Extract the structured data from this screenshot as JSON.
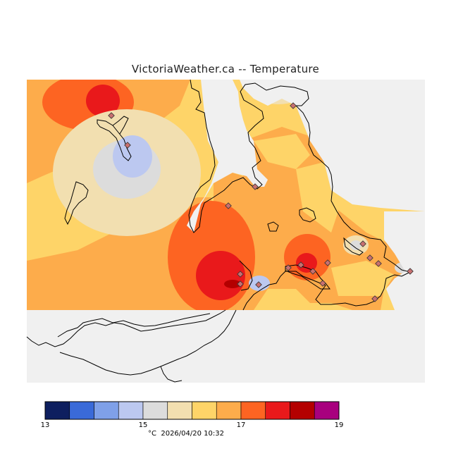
{
  "title": "VictoriaWeather.ca -- Temperature",
  "legend": {
    "unit": "°C",
    "timestamp": "2026/04/20 10:32",
    "ticks": [
      "13",
      "15",
      "17",
      "19"
    ],
    "min": 13,
    "max": 19,
    "colors": [
      "#0e1f5f",
      "#3a6ad8",
      "#7fa0e8",
      "#bcc8f0",
      "#dcdcdc",
      "#f2dfb0",
      "#fed468",
      "#fdac4b",
      "#fd6422",
      "#e9191b",
      "#b40000",
      "#a8007e"
    ]
  },
  "colors": {
    "no_data": "#f0f0f0",
    "coast": "#000000",
    "station": "#c87070"
  }
}
